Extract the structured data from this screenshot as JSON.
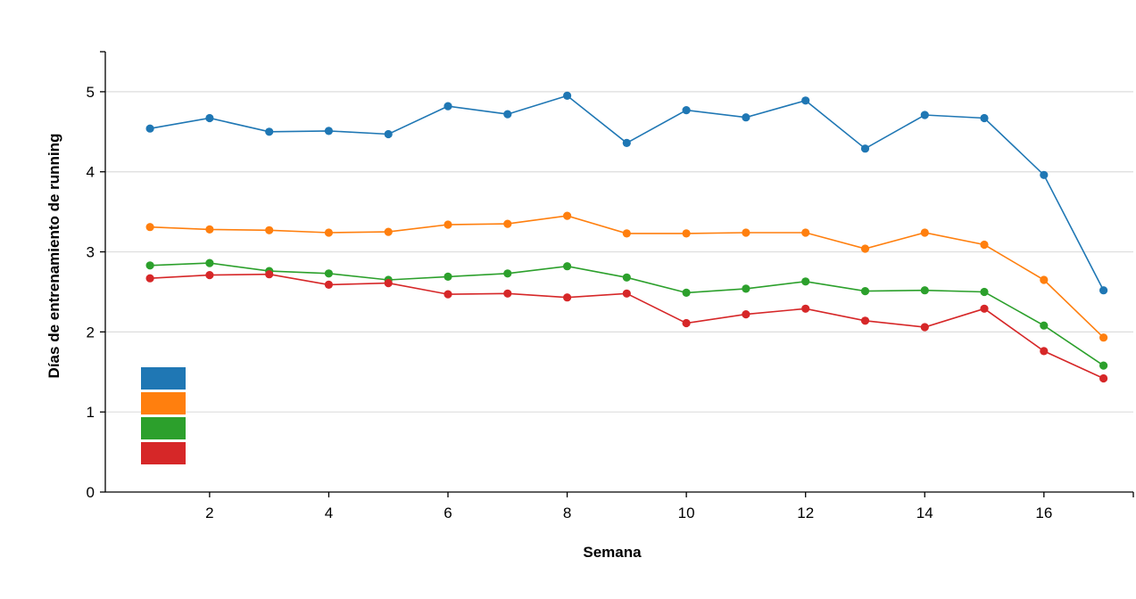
{
  "chart_data": {
    "type": "line",
    "xlabel": "Semana",
    "ylabel": "Días de entrenamiento de running",
    "x": [
      1,
      2,
      3,
      4,
      5,
      6,
      7,
      8,
      9,
      10,
      11,
      12,
      13,
      14,
      15,
      16,
      17
    ],
    "xlim": [
      0.25,
      17.5
    ],
    "ylim": [
      0,
      5.5
    ],
    "xticks": [
      2,
      4,
      6,
      8,
      10,
      12,
      14,
      16
    ],
    "yticks": [
      0,
      1,
      2,
      3,
      4,
      5
    ],
    "grid": "horizontal",
    "legend_position": "bottom-left",
    "series": [
      {
        "color": "#1f77b4",
        "values": [
          4.54,
          4.67,
          4.5,
          4.51,
          4.47,
          4.82,
          4.72,
          4.95,
          4.36,
          4.77,
          4.68,
          4.89,
          4.29,
          4.71,
          4.67,
          3.96,
          2.52
        ]
      },
      {
        "color": "#ff7f0e",
        "values": [
          3.31,
          3.28,
          3.27,
          3.24,
          3.25,
          3.34,
          3.35,
          3.45,
          3.23,
          3.23,
          3.24,
          3.24,
          3.04,
          3.24,
          3.09,
          2.65,
          1.93
        ]
      },
      {
        "color": "#2ca02c",
        "values": [
          2.83,
          2.86,
          2.76,
          2.73,
          2.65,
          2.69,
          2.73,
          2.82,
          2.68,
          2.49,
          2.54,
          2.63,
          2.51,
          2.52,
          2.5,
          2.08,
          1.58
        ]
      },
      {
        "color": "#d62728",
        "values": [
          2.67,
          2.71,
          2.72,
          2.59,
          2.61,
          2.47,
          2.48,
          2.43,
          2.48,
          2.11,
          2.22,
          2.29,
          2.14,
          2.06,
          2.29,
          1.76,
          1.42
        ]
      }
    ]
  }
}
